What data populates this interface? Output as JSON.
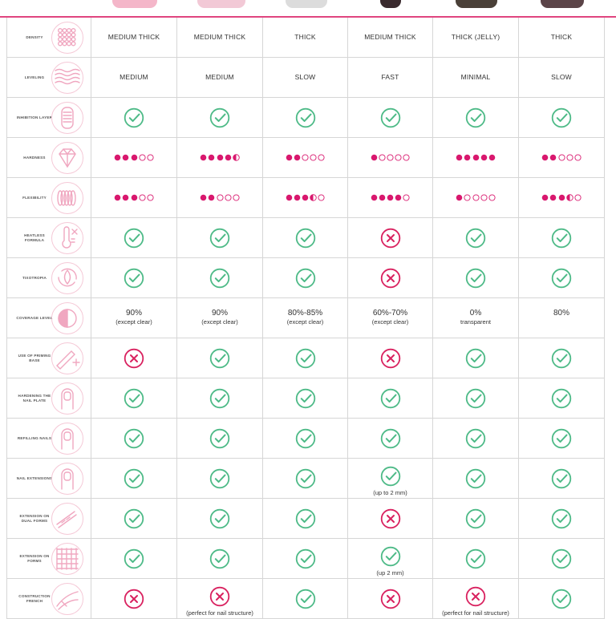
{
  "colors": {
    "accent": "#e0457f",
    "ok": "#4dba87",
    "no": "#d9215f",
    "dot": "#d9186e",
    "line": "#d6d6d6",
    "icon": "#f0a7c0"
  },
  "columns": 6,
  "rows": [
    {
      "label": "DENSITY",
      "icon": "dots-sphere-icon",
      "type": "text",
      "values": [
        "MEDIUM THICK",
        "MEDIUM THICK",
        "THICK",
        "MEDIUM THICK",
        "THICK (JELLY)",
        "THICK"
      ]
    },
    {
      "label": "LEVELING",
      "icon": "waves-icon",
      "type": "text",
      "values": [
        "MEDIUM",
        "MEDIUM",
        "SLOW",
        "FAST",
        "MINIMAL",
        "SLOW"
      ]
    },
    {
      "label": "INHIBITION LAYER",
      "icon": "nail-layer-icon",
      "type": "mark",
      "values": [
        "yes",
        "yes",
        "yes",
        "yes",
        "yes",
        "yes"
      ]
    },
    {
      "label": "HARDNESS",
      "icon": "diamond-icon",
      "type": "dots",
      "values": [
        3,
        4.5,
        2,
        1,
        5,
        2
      ]
    },
    {
      "label": "FLEXIBILITY",
      "icon": "spring-icon",
      "type": "dots",
      "values": [
        3,
        2,
        3.5,
        4,
        1,
        3.5
      ]
    },
    {
      "label": "HEATLESS FORMULA",
      "icon": "thermometer-icon",
      "type": "mark",
      "values": [
        "yes",
        "yes",
        "yes",
        "no",
        "yes",
        "yes"
      ]
    },
    {
      "label": "TIXOTROPIA",
      "icon": "drop-cycle-icon",
      "type": "mark",
      "values": [
        "yes",
        "yes",
        "yes",
        "no",
        "yes",
        "yes"
      ]
    },
    {
      "label": "COVERAGE LEVEL",
      "icon": "half-circle-icon",
      "type": "coverage",
      "values": [
        {
          "pct": "90%",
          "note": "(except clear)"
        },
        {
          "pct": "90%",
          "note": "(except clear)"
        },
        {
          "pct": "80%-85%",
          "note": "(except clear)"
        },
        {
          "pct": "60%-70%",
          "note": "(except clear)"
        },
        {
          "pct": "0%",
          "note": "transparent"
        },
        {
          "pct": "80%",
          "note": ""
        }
      ]
    },
    {
      "label": "USE OF PRIMING BASE",
      "icon": "brush-plus-icon",
      "type": "mark",
      "values": [
        "no",
        "yes",
        "yes",
        "no",
        "yes",
        "yes"
      ]
    },
    {
      "label": "HARDENING THE NAIL PLATE",
      "icon": "finger-nail-icon",
      "type": "mark",
      "values": [
        "yes",
        "yes",
        "yes",
        "yes",
        "yes",
        "yes"
      ]
    },
    {
      "label": "REFILLING NAILS",
      "icon": "finger-refill-icon",
      "type": "mark",
      "values": [
        "yes",
        "yes",
        "yes",
        "yes",
        "yes",
        "yes"
      ]
    },
    {
      "label": "NAIL EXTENSIONS",
      "icon": "finger-extension-icon",
      "type": "mark",
      "values": [
        "yes",
        "yes",
        "yes",
        "yes",
        "yes",
        "yes"
      ],
      "notes": [
        "",
        "",
        "",
        "(up to 2 mm)",
        "",
        ""
      ]
    },
    {
      "label": "EXTENSION ON DUAL FORMS",
      "icon": "dual-form-icon",
      "type": "mark",
      "values": [
        "yes",
        "yes",
        "yes",
        "no",
        "yes",
        "yes"
      ]
    },
    {
      "label": "EXTENSION ON FORMS",
      "icon": "form-grid-icon",
      "type": "mark",
      "values": [
        "yes",
        "yes",
        "yes",
        "yes",
        "yes",
        "yes"
      ],
      "notes": [
        "",
        "",
        "",
        "(up 2 mm)",
        "",
        ""
      ]
    },
    {
      "label": "CONSTRUCTION FRENCH",
      "icon": "french-tool-icon",
      "type": "mark",
      "values": [
        "no",
        "no",
        "yes",
        "no",
        "no",
        "yes"
      ],
      "notes": [
        "",
        "(perfect for nail structure)",
        "",
        "",
        "(perfect for nail structure)",
        ""
      ]
    }
  ]
}
